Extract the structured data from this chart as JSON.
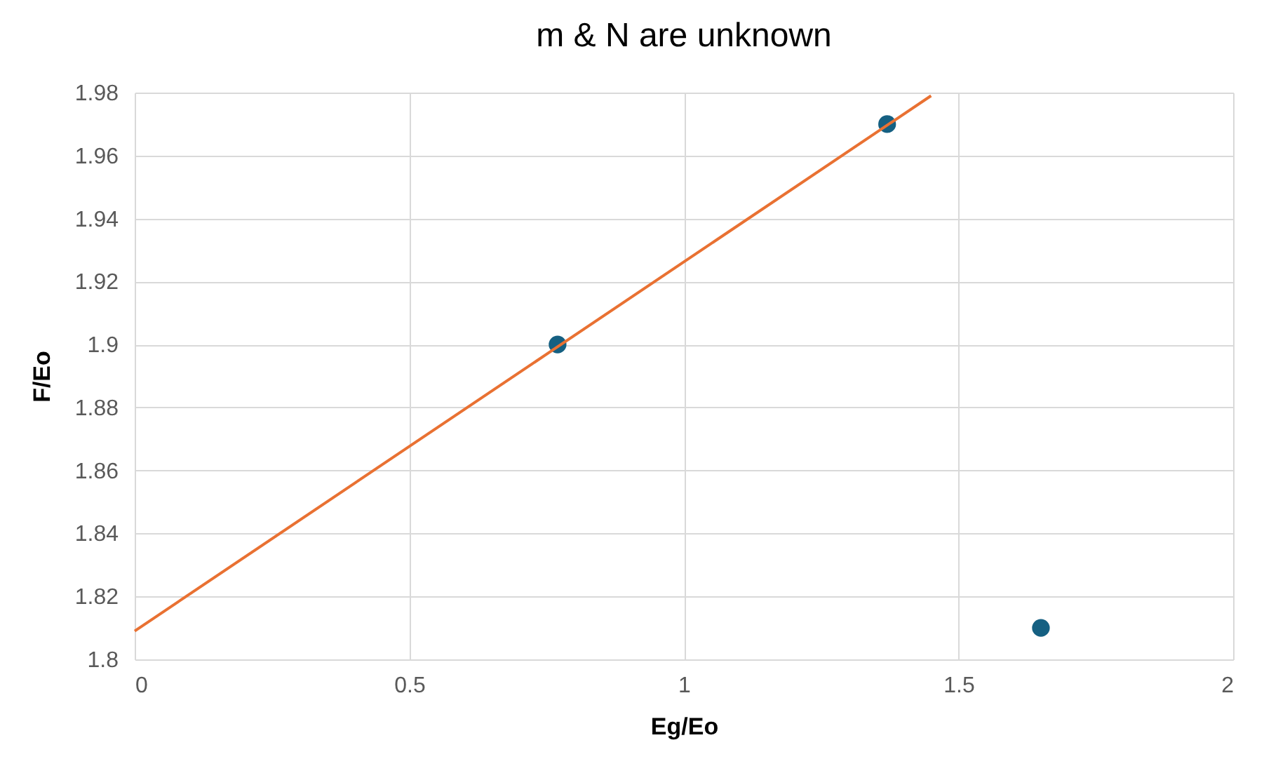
{
  "chart_data": {
    "type": "scatter",
    "title": "m & N are unknown",
    "xlabel": "Eg/Eo",
    "ylabel": "F/Eo",
    "series": [
      {
        "color": "#156082",
        "marker": "circle",
        "x": [
          0.77,
          1.37,
          1.65
        ],
        "values": [
          1.9,
          1.97,
          1.81
        ]
      },
      {
        "type": "line",
        "color": "#e97132",
        "marker": "none",
        "x": [
          0,
          1.45
        ],
        "values": [
          1.809,
          1.979
        ]
      }
    ],
    "xlim": [
      0,
      2
    ],
    "xticks": [
      0,
      0.5,
      1,
      1.5,
      2
    ],
    "ylim": [
      1.8,
      1.98
    ],
    "yticks": [
      1.8,
      1.82,
      1.84,
      1.86,
      1.88,
      1.9,
      1.92,
      1.94,
      1.96,
      1.98
    ],
    "grid": true,
    "legend": false
  }
}
